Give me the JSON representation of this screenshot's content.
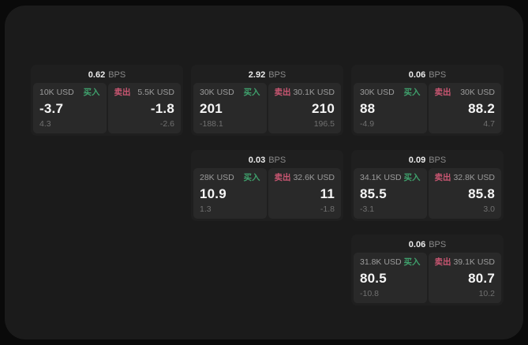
{
  "labels": {
    "bps_unit": "BPS",
    "buy": "买入",
    "sell": "卖出"
  },
  "colors": {
    "buy_green": "#3fa06c",
    "sell_red": "#c95672",
    "panel_bg": "#1b1b1b",
    "card_bg": "#1f1f1f",
    "tile_bg": "#292929",
    "outer_bg": "#0a0a0a"
  },
  "cards": [
    {
      "bps": "0.62",
      "buy": {
        "amount": "10K USD",
        "price": "-3.7",
        "sub": "4.3"
      },
      "sell": {
        "amount": "5.5K USD",
        "price": "-1.8",
        "sub": "-2.6"
      }
    },
    {
      "bps": "2.92",
      "buy": {
        "amount": "30K USD",
        "price": "201",
        "sub": "-188.1"
      },
      "sell": {
        "amount": "30.1K USD",
        "price": "210",
        "sub": "196.5"
      }
    },
    {
      "bps": "0.06",
      "buy": {
        "amount": "30K USD",
        "price": "88",
        "sub": "-4.9"
      },
      "sell": {
        "amount": "30K USD",
        "price": "88.2",
        "sub": "4.7"
      }
    },
    {
      "bps": "0.03",
      "buy": {
        "amount": "28K USD",
        "price": "10.9",
        "sub": "1.3"
      },
      "sell": {
        "amount": "32.6K USD",
        "price": "11",
        "sub": "-1.8"
      }
    },
    {
      "bps": "0.09",
      "buy": {
        "amount": "34.1K USD",
        "price": "85.5",
        "sub": "-3.1"
      },
      "sell": {
        "amount": "32.8K USD",
        "price": "85.8",
        "sub": "3.0"
      }
    },
    {
      "bps": "0.06",
      "buy": {
        "amount": "31.8K USD",
        "price": "80.5",
        "sub": "-10.8"
      },
      "sell": {
        "amount": "39.1K USD",
        "price": "80.7",
        "sub": "10.2"
      }
    }
  ]
}
